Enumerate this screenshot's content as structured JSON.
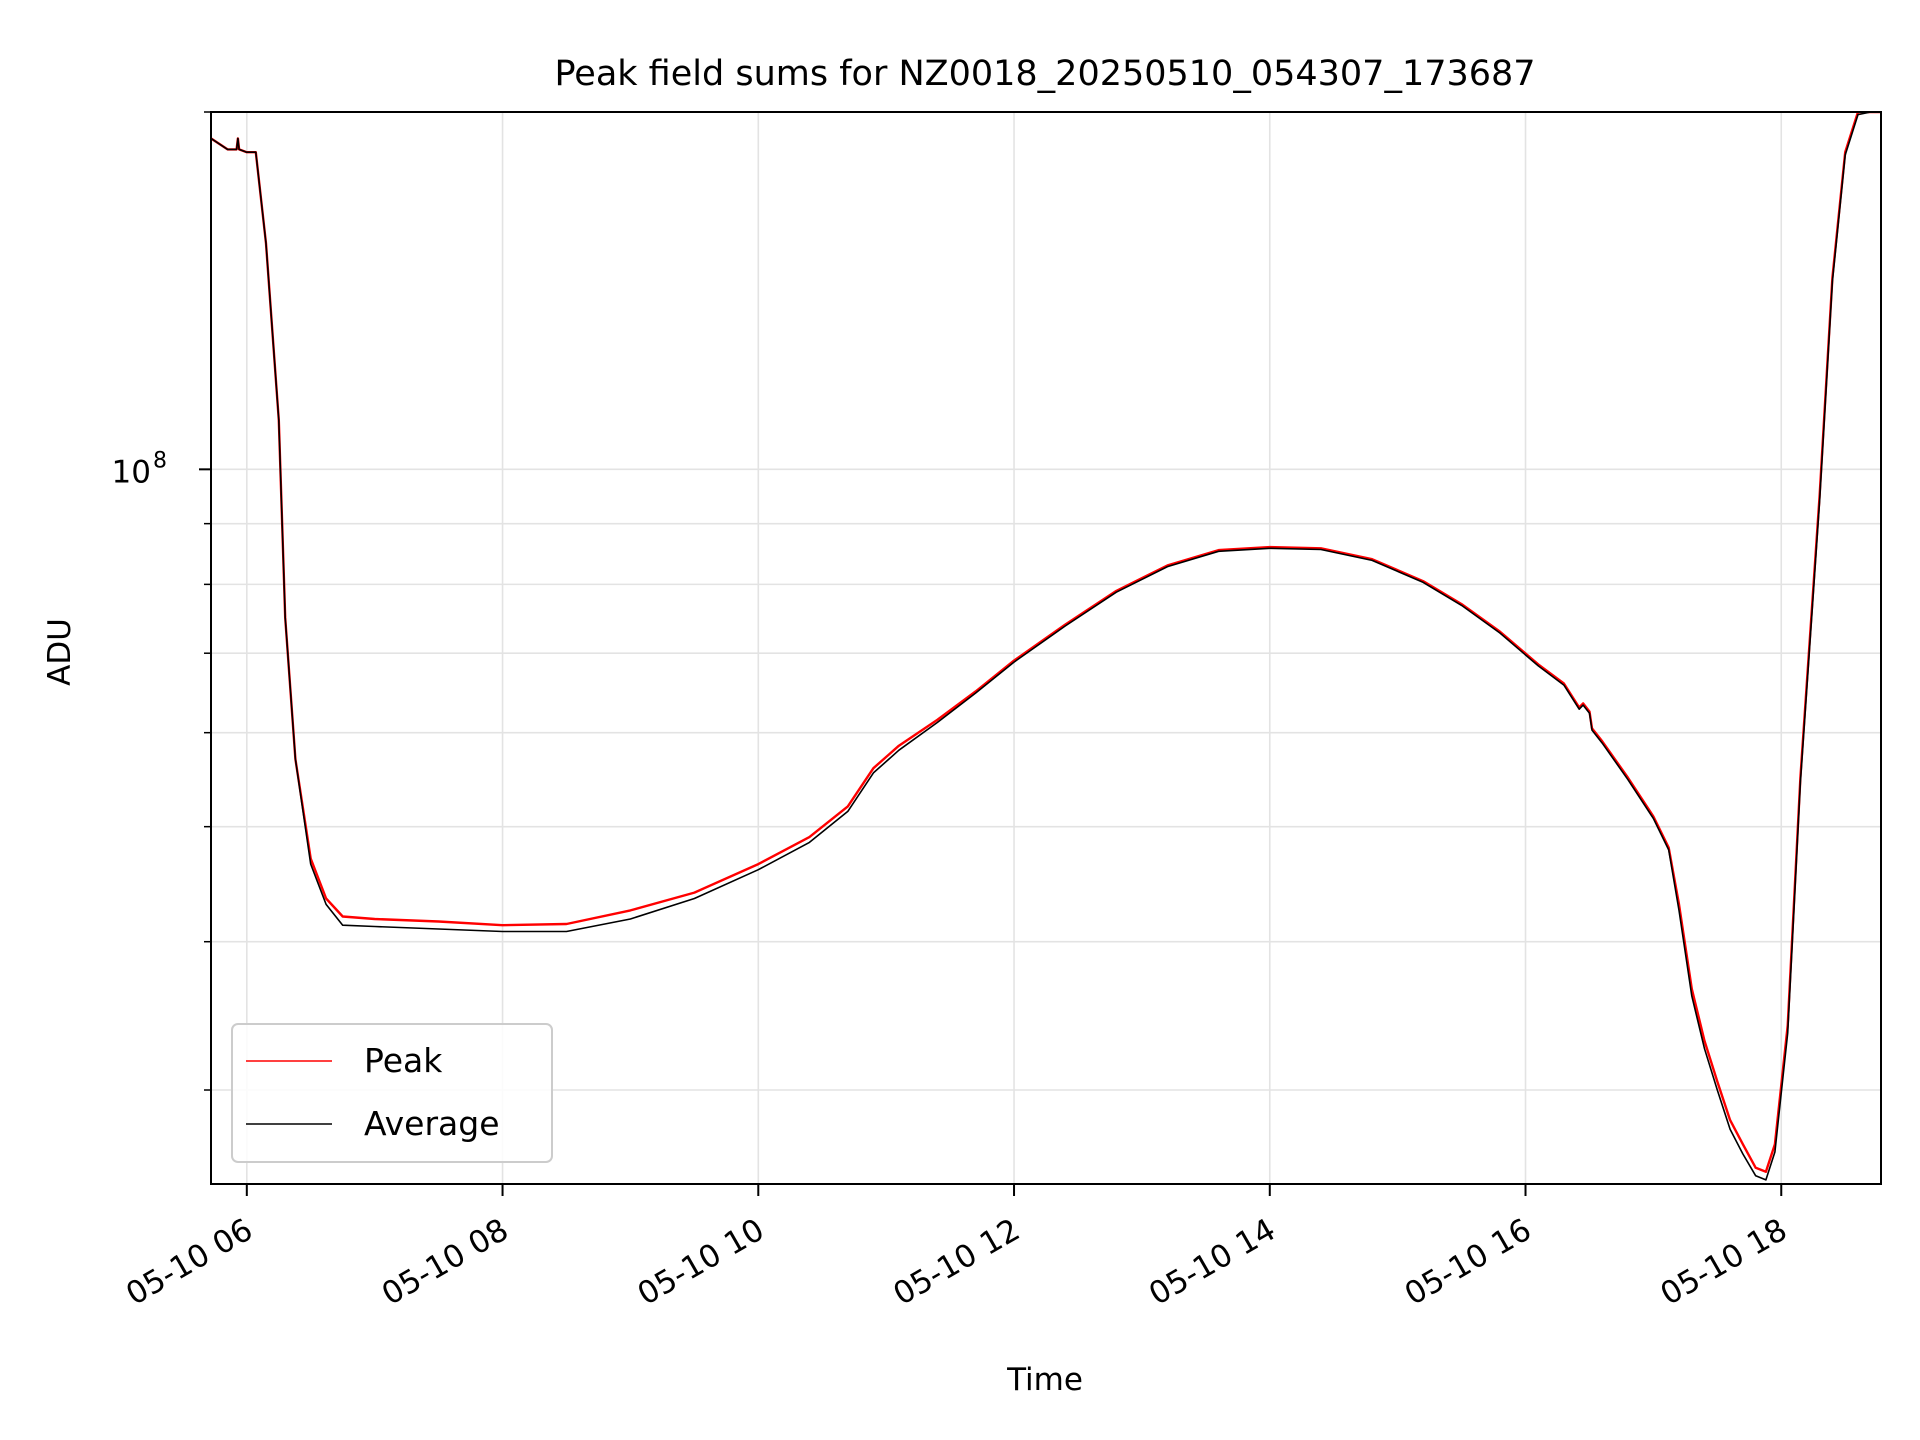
{
  "chart_data": {
    "type": "line",
    "title": "Peak field sums for NZ0018_20250510_054307_173687",
    "xlabel": "Time",
    "ylabel": "ADU",
    "x_unit": "hour of 2025-05-10",
    "xlim": [
      5.72,
      18.78
    ],
    "y_scale": "log",
    "ylim": [
      25000000,
      200000000
    ],
    "y_major_ticks": [
      {
        "value": 100000000,
        "base": "10",
        "exp": "8"
      }
    ],
    "y_minor_ticks": [
      30000000,
      40000000,
      50000000,
      60000000,
      70000000,
      80000000,
      90000000,
      200000000
    ],
    "x_ticks": [
      {
        "value": 6,
        "label": "05-10 06"
      },
      {
        "value": 8,
        "label": "05-10 08"
      },
      {
        "value": 10,
        "label": "05-10 10"
      },
      {
        "value": 12,
        "label": "05-10 12"
      },
      {
        "value": 14,
        "label": "05-10 14"
      },
      {
        "value": 16,
        "label": "05-10 16"
      },
      {
        "value": 18,
        "label": "05-10 18"
      }
    ],
    "grid": true,
    "legend_position": "lower-left",
    "series": [
      {
        "name": "Peak",
        "color": "#ff0000",
        "x": [
          5.72,
          5.85,
          5.92,
          5.93,
          5.94,
          6.0,
          6.07,
          6.15,
          6.25,
          6.3,
          6.38,
          6.5,
          6.62,
          6.75,
          7.0,
          7.5,
          8.0,
          8.5,
          9.0,
          9.5,
          10.0,
          10.4,
          10.7,
          10.9,
          11.1,
          11.4,
          11.7,
          12.0,
          12.4,
          12.8,
          13.2,
          13.6,
          14.0,
          14.4,
          14.8,
          15.2,
          15.5,
          15.8,
          16.1,
          16.3,
          16.42,
          16.45,
          16.5,
          16.52,
          16.6,
          16.8,
          17.0,
          17.12,
          17.2,
          17.3,
          17.4,
          17.5,
          17.6,
          17.7,
          17.8,
          17.88,
          17.95,
          18.05,
          18.15,
          18.3,
          18.4,
          18.5,
          18.6,
          18.7,
          18.78
        ],
        "y": [
          190000000,
          186000000,
          186000000,
          190000000,
          186000000,
          185000000,
          185000000,
          155000000,
          110000000,
          75000000,
          57000000,
          47000000,
          43500000,
          42000000,
          41800000,
          41600000,
          41300000,
          41400000,
          42500000,
          44000000,
          46500000,
          49000000,
          52000000,
          56000000,
          58500000,
          61500000,
          65000000,
          69000000,
          74000000,
          79000000,
          83000000,
          85500000,
          86000000,
          85800000,
          84000000,
          80500000,
          77000000,
          73000000,
          68500000,
          66000000,
          63000000,
          63500000,
          62500000,
          60500000,
          59000000,
          55000000,
          51000000,
          48000000,
          43000000,
          36500000,
          33000000,
          30500000,
          28300000,
          27000000,
          25800000,
          25600000,
          27000000,
          34000000,
          55000000,
          95000000,
          145000000,
          185000000,
          200000000,
          200000000,
          200000000
        ]
      },
      {
        "name": "Average",
        "color": "#000000",
        "x": [
          5.72,
          5.85,
          5.92,
          5.93,
          5.94,
          6.0,
          6.07,
          6.15,
          6.25,
          6.3,
          6.38,
          6.5,
          6.62,
          6.75,
          7.0,
          7.5,
          8.0,
          8.5,
          9.0,
          9.5,
          10.0,
          10.4,
          10.7,
          10.9,
          11.1,
          11.4,
          11.7,
          12.0,
          12.4,
          12.8,
          13.2,
          13.6,
          14.0,
          14.4,
          14.8,
          15.2,
          15.5,
          15.8,
          16.1,
          16.3,
          16.42,
          16.45,
          16.5,
          16.52,
          16.6,
          16.8,
          17.0,
          17.12,
          17.2,
          17.3,
          17.4,
          17.5,
          17.6,
          17.7,
          17.8,
          17.88,
          17.95,
          18.05,
          18.15,
          18.3,
          18.4,
          18.5,
          18.6,
          18.7,
          18.78
        ],
        "y": [
          190000000,
          186000000,
          186000000,
          190000000,
          186000000,
          185000000,
          185000000,
          155000000,
          110000000,
          75000000,
          57000000,
          46500000,
          43000000,
          41300000,
          41200000,
          41000000,
          40800000,
          40800000,
          41800000,
          43500000,
          46000000,
          48500000,
          51500000,
          55500000,
          58000000,
          61200000,
          64800000,
          68800000,
          73800000,
          78800000,
          82800000,
          85300000,
          85800000,
          85600000,
          83800000,
          80300000,
          76800000,
          72800000,
          68300000,
          65800000,
          62800000,
          63300000,
          62300000,
          60300000,
          58800000,
          54800000,
          50800000,
          47800000,
          42500000,
          36000000,
          32500000,
          30000000,
          27800000,
          26500000,
          25400000,
          25200000,
          26600000,
          33500000,
          54500000,
          94000000,
          144000000,
          184000000,
          199000000,
          200000000,
          200000000
        ]
      }
    ]
  }
}
